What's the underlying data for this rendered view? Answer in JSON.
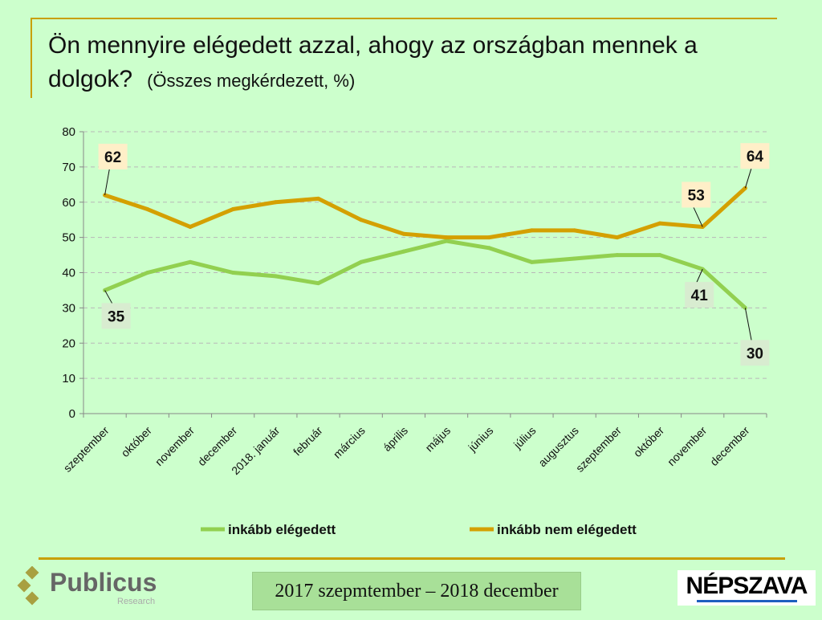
{
  "chart_data": {
    "type": "line",
    "title": "Ön mennyire elégedett azzal, ahogy az országban mennek a dolgok?",
    "subtitle": "(Összes megkérdezett, %)",
    "categories": [
      "szeptember",
      "október",
      "november",
      "december",
      "2018. január",
      "február",
      "március",
      "április",
      "május",
      "június",
      "július",
      "augusztus",
      "szeptember",
      "október",
      "november",
      "december"
    ],
    "ylim": [
      0,
      80
    ],
    "yticks": [
      0,
      10,
      20,
      30,
      40,
      50,
      60,
      70,
      80
    ],
    "grid": true,
    "legend": "bottom",
    "series": [
      {
        "name": "inkább elégedett",
        "color": "#92d050",
        "values": [
          35,
          40,
          43,
          40,
          39,
          37,
          43,
          46,
          49,
          47,
          43,
          44,
          45,
          45,
          41,
          30
        ]
      },
      {
        "name": "inkább nem elégedett",
        "color": "#d4a000",
        "values": [
          62,
          58,
          53,
          58,
          60,
          61,
          55,
          51,
          50,
          50,
          52,
          52,
          50,
          54,
          53,
          64
        ]
      }
    ],
    "annotations": [
      {
        "series": 1,
        "index": 0,
        "label": "62"
      },
      {
        "series": 1,
        "index": 14,
        "label": "53"
      },
      {
        "series": 1,
        "index": 15,
        "label": "64"
      },
      {
        "series": 0,
        "index": 0,
        "label": "35"
      },
      {
        "series": 0,
        "index": 14,
        "label": "41"
      },
      {
        "series": 0,
        "index": 15,
        "label": "30"
      }
    ]
  },
  "footer": {
    "period": "2017 szepmtember – 2018 december",
    "logo_left": "Publicus",
    "logo_left_sub": "Research",
    "logo_right": "NÉPSZAVA"
  }
}
